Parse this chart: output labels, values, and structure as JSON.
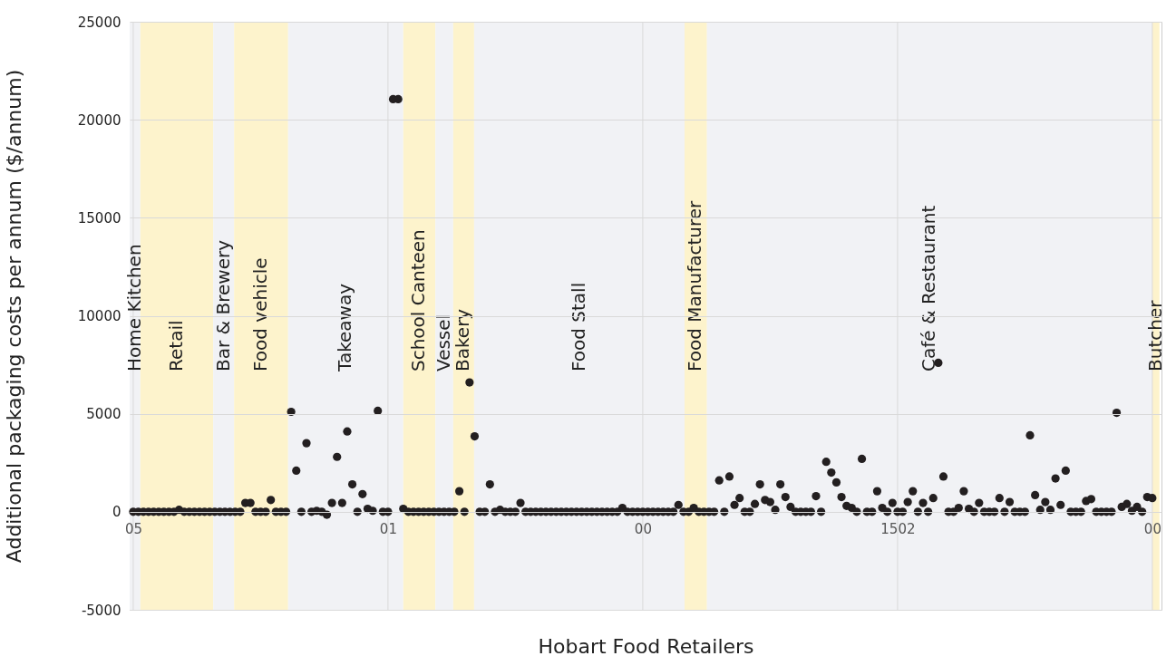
{
  "chart_data": {
    "type": "scatter",
    "xlabel": "Hobart Food Retailers",
    "ylabel": "Additional packaging costs per annum ($/annum)",
    "categories": [
      "05",
      null,
      null,
      null,
      null,
      null,
      null,
      null,
      null,
      null,
      null,
      null,
      null,
      null,
      null,
      null,
      null,
      null,
      null,
      null,
      null,
      null,
      null,
      null,
      null,
      null,
      null,
      null,
      null,
      null,
      null,
      null,
      null,
      null,
      null,
      null,
      null,
      null,
      null,
      null,
      null,
      null,
      null,
      null,
      null,
      null,
      null,
      null,
      null,
      null,
      "01",
      null,
      null,
      null,
      null,
      null,
      null,
      null,
      null,
      null,
      null,
      null,
      null,
      null,
      null,
      null,
      null,
      null,
      null,
      null,
      null,
      null,
      null,
      null,
      null,
      null,
      null,
      null,
      null,
      null,
      null,
      null,
      null,
      null,
      null,
      null,
      null,
      null,
      null,
      null,
      null,
      null,
      null,
      null,
      null,
      null,
      null,
      null,
      null,
      null,
      "00",
      null,
      null,
      null,
      null,
      null,
      null,
      null,
      null,
      null,
      null,
      null,
      null,
      null,
      null,
      null,
      null,
      null,
      null,
      null,
      null,
      null,
      null,
      null,
      null,
      null,
      null,
      null,
      null,
      null,
      null,
      null,
      null,
      null,
      null,
      null,
      null,
      null,
      null,
      null,
      null,
      null,
      null,
      null,
      null,
      null,
      null,
      null,
      null,
      null,
      "1502",
      null,
      null,
      null,
      null,
      null,
      null,
      null,
      null,
      null,
      null,
      null,
      null,
      null,
      null,
      null,
      null,
      null,
      null,
      null,
      null,
      null,
      null,
      null,
      null,
      null,
      null,
      null,
      null,
      null,
      null,
      null,
      null,
      null,
      null,
      null,
      null,
      null,
      null,
      null,
      null,
      null,
      null,
      null,
      null,
      null,
      null,
      null,
      null,
      null,
      "00"
    ],
    "series": [
      {
        "color": "#231f20",
        "values": [
          0,
          0,
          0,
          0,
          0,
          0,
          0,
          0,
          0,
          100,
          0,
          0,
          0,
          0,
          0,
          0,
          0,
          0,
          0,
          0,
          0,
          0,
          450,
          450,
          0,
          0,
          0,
          600,
          0,
          0,
          0,
          5100,
          2100,
          0,
          3500,
          0,
          50,
          0,
          -150,
          450,
          2800,
          450,
          4100,
          1400,
          0,
          900,
          150,
          50,
          5150,
          0,
          0,
          21050,
          21050,
          150,
          0,
          0,
          0,
          0,
          0,
          0,
          0,
          0,
          0,
          0,
          1050,
          0,
          6600,
          3850,
          0,
          0,
          1400,
          0,
          100,
          0,
          0,
          0,
          450,
          0,
          0,
          0,
          0,
          0,
          0,
          0,
          0,
          0,
          0,
          0,
          0,
          0,
          0,
          0,
          0,
          0,
          0,
          0,
          200,
          0,
          0,
          0,
          0,
          0,
          0,
          0,
          0,
          0,
          0,
          350,
          0,
          0,
          200,
          0,
          0,
          0,
          0,
          1600,
          0,
          1800,
          350,
          700,
          0,
          0,
          400,
          1400,
          600,
          500,
          100,
          1400,
          750,
          250,
          0,
          0,
          0,
          0,
          800,
          0,
          2550,
          2000,
          1500,
          750,
          300,
          200,
          0,
          2700,
          0,
          0,
          1050,
          200,
          0,
          450,
          0,
          0,
          500,
          1050,
          0,
          450,
          0,
          700,
          7600,
          1800,
          0,
          0,
          200,
          1050,
          150,
          0,
          450,
          0,
          0,
          0,
          700,
          0,
          500,
          0,
          0,
          0,
          3900,
          850,
          100,
          500,
          100,
          1700,
          350,
          2100,
          0,
          0,
          0,
          550,
          650,
          0,
          0,
          0,
          0,
          5050,
          250,
          400,
          50,
          250,
          0,
          750,
          700
        ]
      }
    ],
    "ylim": [
      -5000,
      25000
    ],
    "yticks": [
      -5000,
      0,
      5000,
      10000,
      15000,
      20000,
      25000
    ],
    "grid": true,
    "marker": "circle",
    "annotations": [
      "Home Kitchen",
      "Retail",
      "Bar & Brewery",
      "Food vehicle",
      "Takeaway",
      "School Canteen",
      "Vessel",
      "Bakery",
      "Food Stall",
      "Food Manufacturer",
      "Café & Restaurant",
      "Butcher"
    ]
  }
}
